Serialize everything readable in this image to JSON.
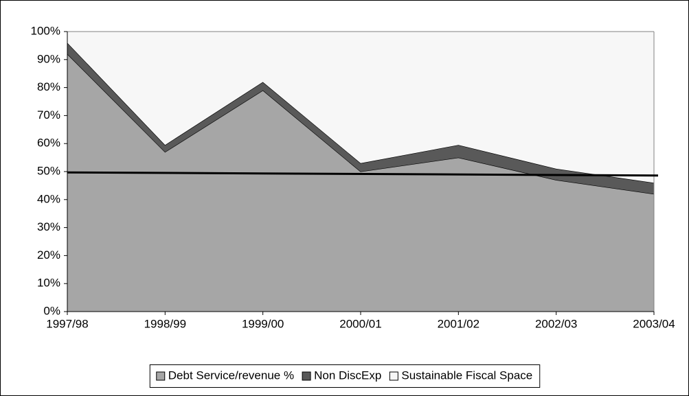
{
  "chart_data": {
    "type": "stacked_area",
    "categories": [
      "1997/98",
      "1998/99",
      "1999/00",
      "2000/01",
      "2001/02",
      "2002/03",
      "2003/04"
    ],
    "series": [
      {
        "name": "Debt Service/revenue %",
        "color": "#a6a6a6",
        "values": [
          92,
          57,
          79,
          50,
          55,
          47,
          42
        ]
      },
      {
        "name": "Non DiscExp",
        "color": "#595959",
        "values": [
          4,
          2.5,
          3,
          3,
          4.5,
          4,
          4
        ]
      },
      {
        "name": "Sustainable Fiscal Space",
        "color": "#f7f7f7",
        "values": [
          4,
          40.5,
          18,
          47,
          40.5,
          49,
          54
        ]
      }
    ],
    "threshold": {
      "values": [
        49.7,
        48.6
      ],
      "color": "#000000"
    },
    "ylim": [
      0,
      100
    ],
    "yticks": [
      {
        "value": 0,
        "label": "0%"
      },
      {
        "value": 10,
        "label": "10%"
      },
      {
        "value": 20,
        "label": "20%"
      },
      {
        "value": 30,
        "label": "30%"
      },
      {
        "value": 40,
        "label": "40%"
      },
      {
        "value": 50,
        "label": "50%"
      },
      {
        "value": 60,
        "label": "60%"
      },
      {
        "value": 70,
        "label": "70%"
      },
      {
        "value": 80,
        "label": "80%"
      },
      {
        "value": 90,
        "label": "90%"
      },
      {
        "value": 100,
        "label": "100%"
      }
    ],
    "legend": "bottom"
  }
}
